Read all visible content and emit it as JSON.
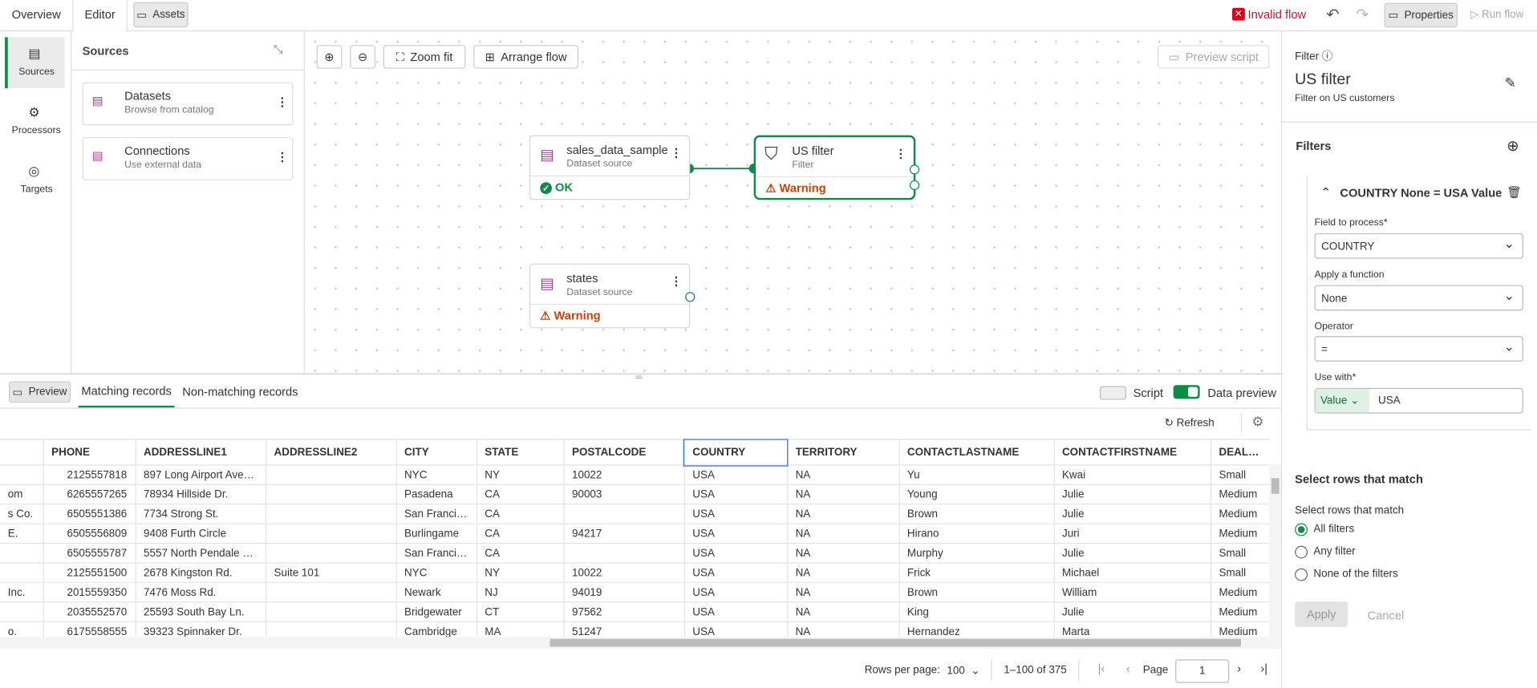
{
  "top_bar": {
    "tabs": [
      "Overview",
      "Editor",
      "Assets"
    ],
    "status": "Invalid flow",
    "properties": "Properties",
    "run_flow": "Run flow"
  },
  "left_nav": [
    "Sources",
    "Processors",
    "Targets"
  ],
  "sources_panel": {
    "title": "Sources",
    "items": [
      {
        "name": "Datasets",
        "desc": "Browse from catalog"
      },
      {
        "name": "Connections",
        "desc": "Use external data"
      }
    ]
  },
  "canvas": {
    "toolbar": [
      "Zoom fit",
      "Arrange flow"
    ],
    "preview_script": "Preview script",
    "nodes": [
      {
        "name": "sales_data_sample",
        "kind": "Dataset source",
        "status": "OK"
      },
      {
        "name": "US filter",
        "kind": "Filter",
        "status": "Warning"
      },
      {
        "name": "states",
        "kind": "Dataset source",
        "status": "Warning"
      }
    ]
  },
  "preview": {
    "button": "Preview",
    "tabs": [
      "Matching records",
      "Non-matching records"
    ],
    "toggles": [
      "Script",
      "Data preview"
    ],
    "refresh": "Refresh",
    "columns": [
      "PHONE",
      "ADDRESSLINE1",
      "ADDRESSLINE2",
      "CITY",
      "STATE",
      "POSTALCODE",
      "COUNTRY",
      "TERRITORY",
      "CONTACTLASTNAME",
      "CONTACTFIRSTNAME",
      "DEALSIZE"
    ],
    "rows": [
      [
        null,
        "2125557818",
        "897 Long Airport Aven...",
        null,
        "NYC",
        "NY",
        "10022",
        "USA",
        "NA",
        "Yu",
        "Kwai",
        "Small"
      ],
      [
        "om",
        "6265557265",
        "78934 Hillside Dr.",
        null,
        "Pasadena",
        "CA",
        "90003",
        "USA",
        "NA",
        "Young",
        "Julie",
        "Medium"
      ],
      [
        "s Co.",
        "6505551386",
        "7734 Strong St.",
        null,
        "San Francisco",
        "CA",
        null,
        "USA",
        "NA",
        "Brown",
        "Julie",
        "Medium"
      ],
      [
        "E.",
        "6505556809",
        "9408 Furth Circle",
        null,
        "Burlingame",
        "CA",
        "94217",
        "USA",
        "NA",
        "Hirano",
        "Juri",
        "Medium"
      ],
      [
        null,
        "6505555787",
        "5557 North Pendale S...",
        null,
        "San Francisco",
        "CA",
        null,
        "USA",
        "NA",
        "Murphy",
        "Julie",
        "Small"
      ],
      [
        null,
        "2125551500",
        "2678 Kingston Rd.",
        "Suite 101",
        "NYC",
        "NY",
        "10022",
        "USA",
        "NA",
        "Frick",
        "Michael",
        "Small"
      ],
      [
        "Inc.",
        "2015559350",
        "7476 Moss Rd.",
        null,
        "Newark",
        "NJ",
        "94019",
        "USA",
        "NA",
        "Brown",
        "William",
        "Medium"
      ],
      [
        null,
        "2035552570",
        "25593 South Bay Ln.",
        null,
        "Bridgewater",
        "CT",
        "97562",
        "USA",
        "NA",
        "King",
        "Julie",
        "Medium"
      ],
      [
        "o.",
        "6175558555",
        "39323 Spinnaker Dr.",
        null,
        "Cambridge",
        "MA",
        "51247",
        "USA",
        "NA",
        "Hernandez",
        "Marta",
        "Medium"
      ]
    ],
    "pagination": {
      "rows_per_page_label": "Rows per page:",
      "rows_per_page": "100",
      "range": "1–100 of 375",
      "page_label": "Page",
      "page": "1"
    }
  },
  "properties": {
    "section": "Filter",
    "title": "US filter",
    "description": "Filter on US customers",
    "filters_heading": "Filters",
    "filter_title": "COUNTRY None = USA Value",
    "fields": [
      {
        "label": "Field to process*",
        "value": "COUNTRY"
      },
      {
        "label": "Apply a function",
        "value": "None"
      },
      {
        "label": "Operator",
        "value": "="
      },
      {
        "label": "Use with*",
        "value": "USA"
      }
    ],
    "use_with_type": "Value",
    "match_heading": "Select rows that match",
    "match_label": "Select rows that match",
    "match_options": [
      "All filters",
      "Any filter",
      "None of the filters"
    ],
    "apply": "Apply",
    "cancel": "Cancel"
  }
}
